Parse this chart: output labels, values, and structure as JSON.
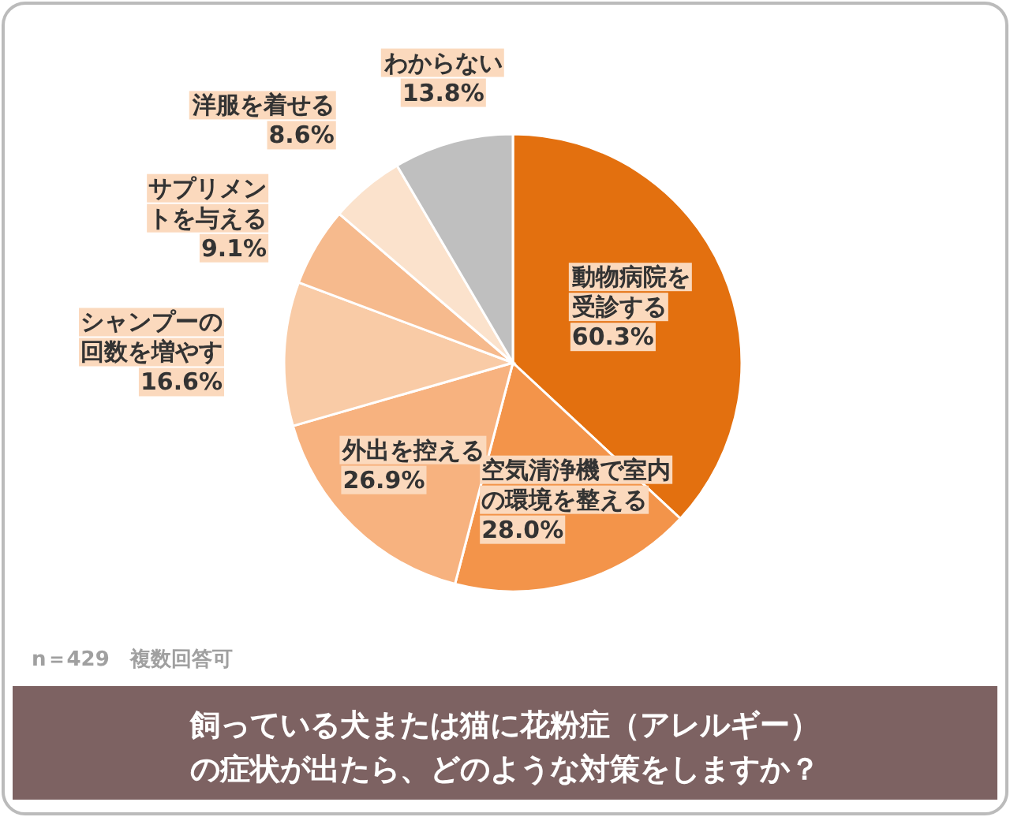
{
  "chart_data": {
    "type": "pie",
    "title": "飼っている犬または猫に花粉症（アレルギー）の症状が出たら、どのような対策をしますか？",
    "categories": [
      "動物病院を受診する",
      "空気清浄機で室内の環境を整える",
      "外出を控える",
      "シャンプーの回数を増やす",
      "サプリメントを与える",
      "洋服を着せる",
      "わからない"
    ],
    "values": [
      60.3,
      28.0,
      26.9,
      16.6,
      9.1,
      8.6,
      13.8
    ],
    "value_labels": [
      "60.3%",
      "28.0%",
      "26.9%",
      "16.6%",
      "9.1%",
      "8.6%",
      "13.8%"
    ],
    "colors": [
      "#e3700f",
      "#f3944a",
      "#f7b27f",
      "#f9cba6",
      "#f6ba8d",
      "#fbe2cc",
      "#bfbfbf"
    ],
    "annotations": [
      "n＝429　複数回答可"
    ],
    "legend": false
  }
}
